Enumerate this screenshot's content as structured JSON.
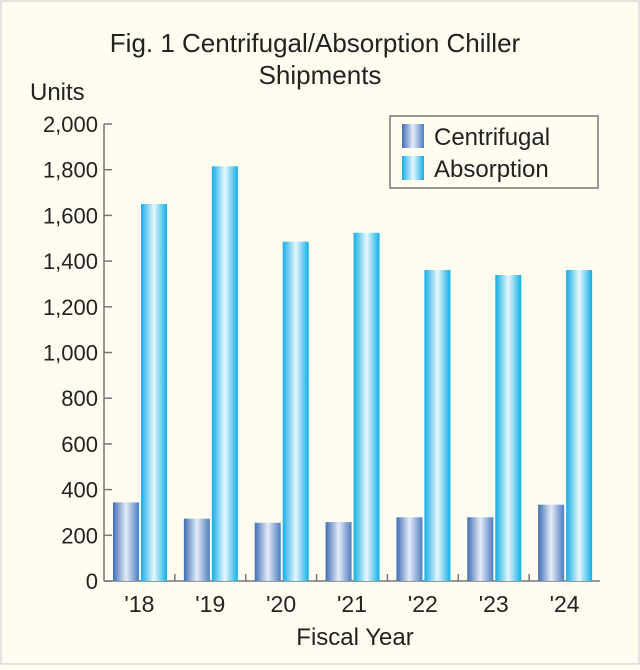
{
  "chart_data": {
    "type": "bar",
    "title": "Fig. 1  Centrifugal/Absorption Chiller",
    "title_line2": "Shipments",
    "ylabel": "Units",
    "xlabel": "Fiscal Year",
    "categories": [
      "'18",
      "'19",
      "'20",
      "'21",
      "'22",
      "'23",
      "'24"
    ],
    "ylim": [
      0,
      2000
    ],
    "yticks": [
      0,
      200,
      400,
      600,
      800,
      1000,
      1200,
      1400,
      1600,
      1800,
      2000
    ],
    "ytick_labels": [
      "0",
      "200",
      "400",
      "600",
      "800",
      "1,000",
      "1,200",
      "1,400",
      "1,600",
      "1,800",
      "2,000"
    ],
    "legend_position": "top-right",
    "grid": false,
    "series": [
      {
        "name": "Centrifugal",
        "color": "#5b84c4",
        "values": [
          344,
          273,
          255,
          258,
          279,
          279,
          334
        ]
      },
      {
        "name": "Absorption",
        "color": "#1fb6e8",
        "values": [
          1650,
          1815,
          1485,
          1524,
          1361,
          1339,
          1361
        ]
      }
    ]
  }
}
